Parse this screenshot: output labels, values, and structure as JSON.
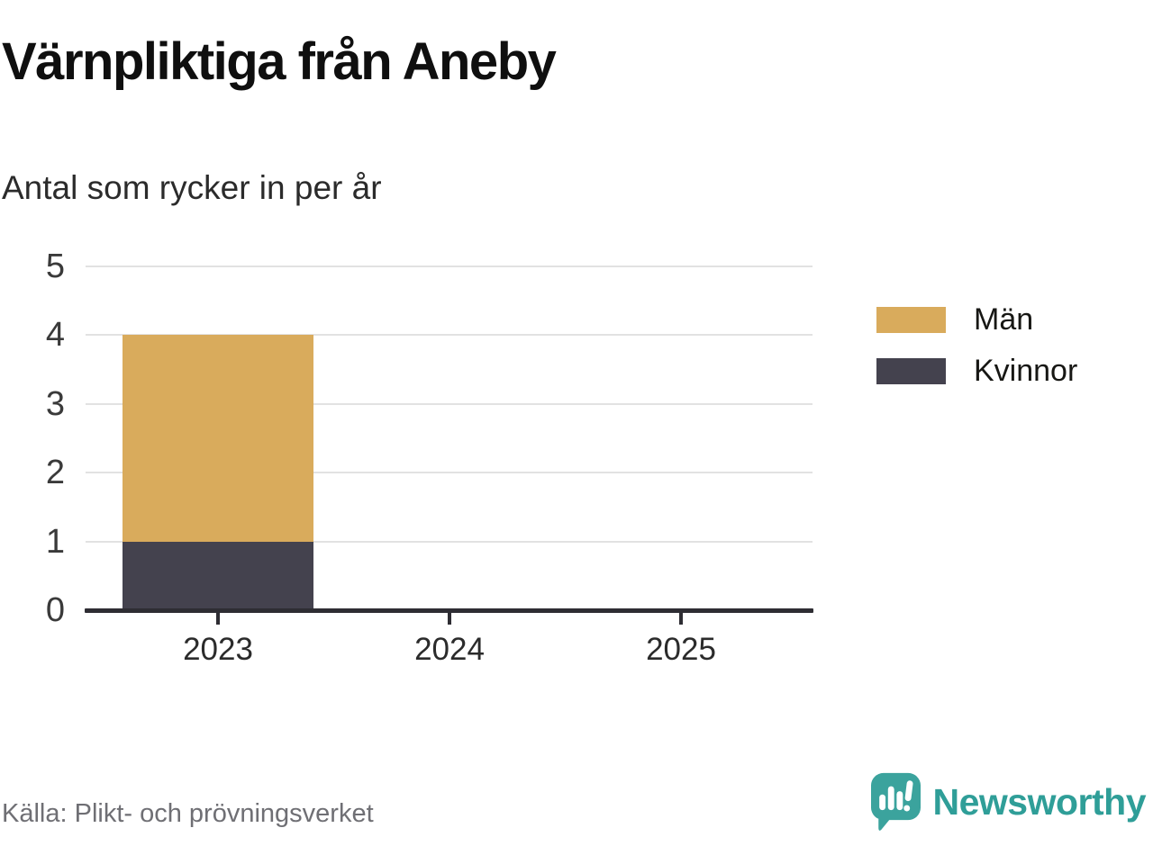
{
  "header": {
    "title": "Värnpliktiga från Aneby",
    "subtitle": "Antal som rycker in per år"
  },
  "chart_data": {
    "type": "bar",
    "stacked": true,
    "title": "Värnpliktiga från Aneby",
    "subtitle": "Antal som rycker in per år",
    "categories": [
      "2023",
      "2024",
      "2025"
    ],
    "series": [
      {
        "name": "Män",
        "color": "#d9ab5c",
        "values": [
          3,
          0,
          0
        ]
      },
      {
        "name": "Kvinnor",
        "color": "#44424e",
        "values": [
          1,
          0,
          0
        ]
      }
    ],
    "stack_order_bottom_to_top": [
      "Kvinnor",
      "Män"
    ],
    "xlabel": "",
    "ylabel": "",
    "ylim": [
      0,
      5
    ],
    "yticks": [
      0,
      1,
      2,
      3,
      4,
      5
    ],
    "grid": "horizontal",
    "legend_position": "right"
  },
  "legend": {
    "items": [
      {
        "label": "Män",
        "color": "#d9ab5c"
      },
      {
        "label": "Kvinnor",
        "color": "#44424e"
      }
    ]
  },
  "footer": {
    "source": "Källa: Plikt- och prövningsverket",
    "brand": "Newsworthy"
  },
  "colors": {
    "men": "#d9ab5c",
    "women": "#44424e",
    "grid": "#e2e2e2",
    "axis": "#2e2d33",
    "brand_teal": "#2f9e98"
  }
}
